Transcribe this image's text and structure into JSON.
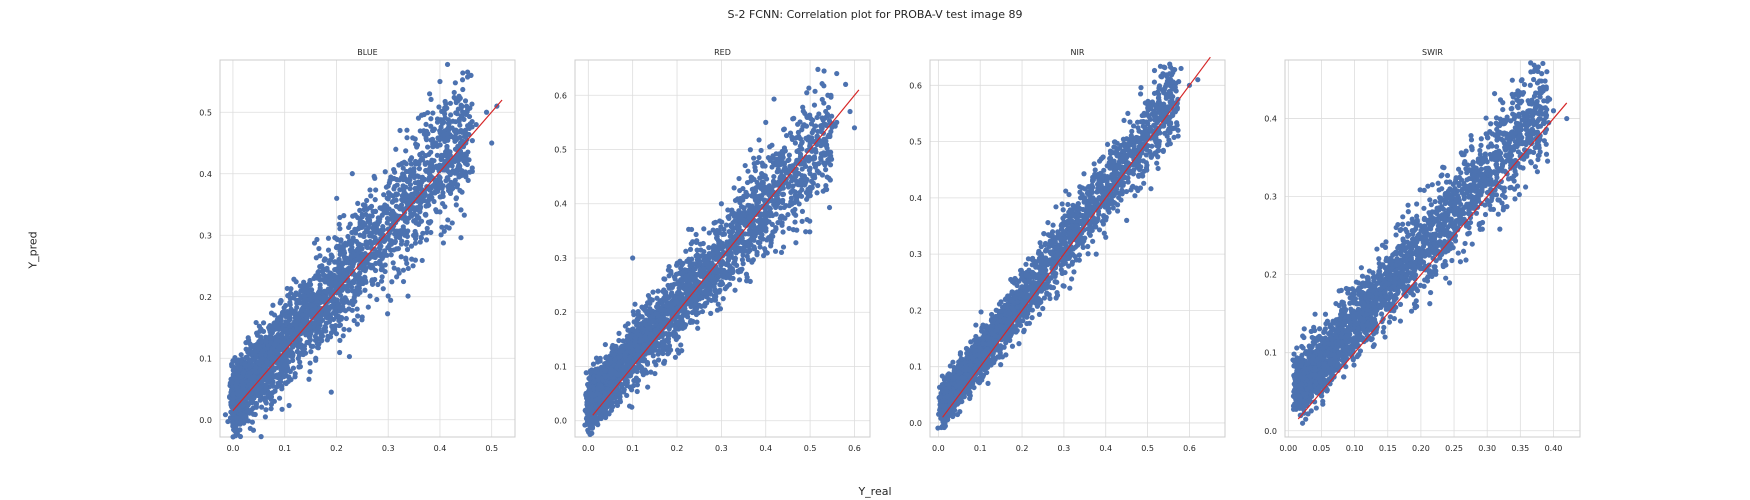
{
  "figure": {
    "title": "S-2 FCNN: Correlation plot for PROBA-V test image 89",
    "xlabel": "Y_real",
    "ylabel": "Y_pred"
  },
  "colors": {
    "points": "#4c72b0",
    "fit_line": "#d62728",
    "grid": "#dddddd",
    "frame": "#cccccc"
  },
  "chart_data": [
    {
      "type": "scatter",
      "title": "BLUE",
      "xlim": [
        -0.025,
        0.545
      ],
      "ylim": [
        -0.028,
        0.585
      ],
      "xticks": [
        0.0,
        0.1,
        0.2,
        0.3,
        0.4,
        0.5
      ],
      "xtick_labels": [
        "0.0",
        "0.1",
        "0.2",
        "0.3",
        "0.4",
        "0.5"
      ],
      "yticks": [
        0.0,
        0.1,
        0.2,
        0.3,
        0.4,
        0.5
      ],
      "ytick_labels": [
        "0.0",
        "0.1",
        "0.2",
        "0.3",
        "0.4",
        "0.5"
      ],
      "fit_line": {
        "x": [
          0.0,
          0.52
        ],
        "y": [
          0.015,
          0.52
        ]
      },
      "cloud": {
        "points": [
          [
            0.0,
            0.04
          ],
          [
            0.01,
            0.03
          ],
          [
            0.02,
            0.05
          ],
          [
            0.03,
            0.04
          ],
          [
            0.04,
            0.07
          ],
          [
            0.05,
            0.05
          ],
          [
            0.06,
            0.08
          ],
          [
            0.07,
            0.07
          ],
          [
            0.08,
            0.1
          ],
          [
            0.09,
            0.09
          ],
          [
            0.1,
            0.12
          ],
          [
            0.11,
            0.11
          ],
          [
            0.12,
            0.14
          ],
          [
            0.13,
            0.13
          ],
          [
            0.14,
            0.16
          ],
          [
            0.15,
            0.15
          ],
          [
            0.16,
            0.18
          ],
          [
            0.17,
            0.17
          ],
          [
            0.18,
            0.19
          ],
          [
            0.19,
            0.2
          ],
          [
            0.2,
            0.21
          ],
          [
            0.21,
            0.22
          ],
          [
            0.22,
            0.23
          ],
          [
            0.23,
            0.24
          ],
          [
            0.24,
            0.26
          ],
          [
            0.25,
            0.25
          ],
          [
            0.26,
            0.28
          ],
          [
            0.27,
            0.27
          ],
          [
            0.28,
            0.29
          ],
          [
            0.29,
            0.3
          ],
          [
            0.3,
            0.31
          ],
          [
            0.31,
            0.32
          ],
          [
            0.32,
            0.33
          ],
          [
            0.33,
            0.34
          ],
          [
            0.34,
            0.35
          ],
          [
            0.35,
            0.36
          ],
          [
            0.36,
            0.38
          ],
          [
            0.37,
            0.37
          ],
          [
            0.38,
            0.4
          ],
          [
            0.39,
            0.39
          ],
          [
            0.4,
            0.41
          ],
          [
            0.41,
            0.42
          ],
          [
            0.42,
            0.43
          ],
          [
            0.43,
            0.44
          ],
          [
            0.45,
            0.45
          ],
          [
            0.47,
            0.48
          ],
          [
            0.49,
            0.5
          ],
          [
            0.51,
            0.51
          ],
          [
            0.4,
            0.55
          ],
          [
            0.46,
            0.56
          ],
          [
            0.38,
            0.53
          ],
          [
            0.44,
            0.47
          ],
          [
            0.5,
            0.45
          ],
          [
            0.36,
            0.34
          ],
          [
            0.05,
            0.12
          ],
          [
            0.1,
            0.17
          ],
          [
            0.15,
            0.22
          ],
          [
            0.2,
            0.28
          ],
          [
            0.25,
            0.33
          ],
          [
            0.3,
            0.38
          ],
          [
            0.08,
            0.03
          ],
          [
            0.12,
            0.07
          ],
          [
            0.16,
            0.1
          ],
          [
            0.2,
            0.14
          ],
          [
            0.24,
            0.18
          ],
          [
            0.28,
            0.22
          ],
          [
            0.19,
            0.045
          ]
        ],
        "band": 0.045,
        "density": 2600,
        "xmin": 0.0,
        "xmax": 0.46,
        "intercept": 0.03,
        "slope": 0.95
      }
    },
    {
      "type": "scatter",
      "title": "RED",
      "xlim": [
        -0.03,
        0.635
      ],
      "ylim": [
        -0.03,
        0.665
      ],
      "xticks": [
        0.0,
        0.1,
        0.2,
        0.3,
        0.4,
        0.5,
        0.6
      ],
      "xtick_labels": [
        "0.0",
        "0.1",
        "0.2",
        "0.3",
        "0.4",
        "0.5",
        "0.6"
      ],
      "yticks": [
        0.0,
        0.1,
        0.2,
        0.3,
        0.4,
        0.5,
        0.6
      ],
      "ytick_labels": [
        "0.0",
        "0.1",
        "0.2",
        "0.3",
        "0.4",
        "0.5",
        "0.6"
      ],
      "fit_line": {
        "x": [
          0.01,
          0.61
        ],
        "y": [
          0.01,
          0.61
        ]
      },
      "cloud": {
        "points": [
          [
            0.0,
            0.04
          ],
          [
            0.02,
            0.05
          ],
          [
            0.05,
            0.07
          ],
          [
            0.08,
            0.1
          ],
          [
            0.11,
            0.13
          ],
          [
            0.14,
            0.16
          ],
          [
            0.17,
            0.19
          ],
          [
            0.2,
            0.22
          ],
          [
            0.23,
            0.25
          ],
          [
            0.26,
            0.28
          ],
          [
            0.29,
            0.31
          ],
          [
            0.32,
            0.34
          ],
          [
            0.35,
            0.37
          ],
          [
            0.38,
            0.4
          ],
          [
            0.41,
            0.43
          ],
          [
            0.44,
            0.45
          ],
          [
            0.47,
            0.48
          ],
          [
            0.5,
            0.51
          ],
          [
            0.53,
            0.53
          ],
          [
            0.56,
            0.55
          ],
          [
            0.59,
            0.57
          ],
          [
            0.6,
            0.54
          ],
          [
            0.58,
            0.62
          ],
          [
            0.56,
            0.64
          ],
          [
            0.54,
            0.6
          ],
          [
            0.4,
            0.55
          ],
          [
            0.36,
            0.46
          ],
          [
            0.15,
            0.13
          ],
          [
            0.1,
            0.3
          ],
          [
            0.3,
            0.4
          ],
          [
            0.45,
            0.38
          ],
          [
            0.5,
            0.43
          ]
        ],
        "band": 0.04,
        "density": 2600,
        "xmin": 0.0,
        "xmax": 0.55,
        "intercept": 0.03,
        "slope": 0.92
      }
    },
    {
      "type": "scatter",
      "title": "NIR",
      "xlim": [
        -0.02,
        0.685
      ],
      "ylim": [
        -0.025,
        0.645
      ],
      "xticks": [
        0.0,
        0.1,
        0.2,
        0.3,
        0.4,
        0.5,
        0.6
      ],
      "xtick_labels": [
        "0.0",
        "0.1",
        "0.2",
        "0.3",
        "0.4",
        "0.5",
        "0.6"
      ],
      "yticks": [
        0.0,
        0.1,
        0.2,
        0.3,
        0.4,
        0.5,
        0.6
      ],
      "ytick_labels": [
        "0.0",
        "0.1",
        "0.2",
        "0.3",
        "0.4",
        "0.5",
        "0.6"
      ],
      "fit_line": {
        "x": [
          0.01,
          0.65
        ],
        "y": [
          0.01,
          0.65
        ]
      },
      "cloud": {
        "points": [
          [
            0.01,
            0.03
          ],
          [
            0.03,
            0.05
          ],
          [
            0.06,
            0.08
          ],
          [
            0.09,
            0.11
          ],
          [
            0.12,
            0.14
          ],
          [
            0.15,
            0.17
          ],
          [
            0.18,
            0.2
          ],
          [
            0.21,
            0.23
          ],
          [
            0.24,
            0.26
          ],
          [
            0.27,
            0.29
          ],
          [
            0.3,
            0.32
          ],
          [
            0.33,
            0.35
          ],
          [
            0.36,
            0.38
          ],
          [
            0.39,
            0.41
          ],
          [
            0.42,
            0.44
          ],
          [
            0.45,
            0.46
          ],
          [
            0.48,
            0.49
          ],
          [
            0.51,
            0.52
          ],
          [
            0.54,
            0.55
          ],
          [
            0.57,
            0.57
          ],
          [
            0.6,
            0.6
          ],
          [
            0.62,
            0.61
          ],
          [
            0.58,
            0.63
          ],
          [
            0.56,
            0.58
          ],
          [
            0.52,
            0.48
          ],
          [
            0.35,
            0.4
          ],
          [
            0.31,
            0.31
          ],
          [
            0.4,
            0.33
          ],
          [
            0.45,
            0.36
          ],
          [
            0.48,
            0.44
          ]
        ],
        "band": 0.028,
        "density": 2600,
        "xmin": 0.01,
        "xmax": 0.57,
        "intercept": 0.02,
        "slope": 0.99
      }
    },
    {
      "type": "scatter",
      "title": "SWIR",
      "xlim": [
        -0.005,
        0.44
      ],
      "ylim": [
        -0.008,
        0.475
      ],
      "xticks": [
        0.0,
        0.05,
        0.1,
        0.15,
        0.2,
        0.25,
        0.3,
        0.35,
        0.4
      ],
      "xtick_labels": [
        "0.00",
        "0.05",
        "0.10",
        "0.15",
        "0.20",
        "0.25",
        "0.30",
        "0.35",
        "0.40"
      ],
      "yticks": [
        0.0,
        0.1,
        0.2,
        0.3,
        0.4
      ],
      "ytick_labels": [
        "0.0",
        "0.1",
        "0.2",
        "0.3",
        "0.4"
      ],
      "fit_line": {
        "x": [
          0.015,
          0.42
        ],
        "y": [
          0.015,
          0.42
        ]
      },
      "cloud": {
        "points": [
          [
            0.015,
            0.045
          ],
          [
            0.02,
            0.06
          ],
          [
            0.04,
            0.08
          ],
          [
            0.06,
            0.1
          ],
          [
            0.08,
            0.12
          ],
          [
            0.1,
            0.14
          ],
          [
            0.12,
            0.16
          ],
          [
            0.14,
            0.17
          ],
          [
            0.16,
            0.19
          ],
          [
            0.18,
            0.21
          ],
          [
            0.2,
            0.23
          ],
          [
            0.22,
            0.25
          ],
          [
            0.24,
            0.27
          ],
          [
            0.26,
            0.29
          ],
          [
            0.28,
            0.31
          ],
          [
            0.3,
            0.33
          ],
          [
            0.32,
            0.35
          ],
          [
            0.34,
            0.36
          ],
          [
            0.36,
            0.38
          ],
          [
            0.38,
            0.4
          ],
          [
            0.4,
            0.41
          ],
          [
            0.42,
            0.4
          ],
          [
            0.39,
            0.46
          ],
          [
            0.37,
            0.45
          ],
          [
            0.35,
            0.42
          ],
          [
            0.3,
            0.38
          ],
          [
            0.33,
            0.4
          ],
          [
            0.22,
            0.21
          ]
        ],
        "band": 0.03,
        "density": 2600,
        "xmin": 0.015,
        "xmax": 0.39,
        "intercept": 0.04,
        "slope": 0.97
      }
    }
  ]
}
